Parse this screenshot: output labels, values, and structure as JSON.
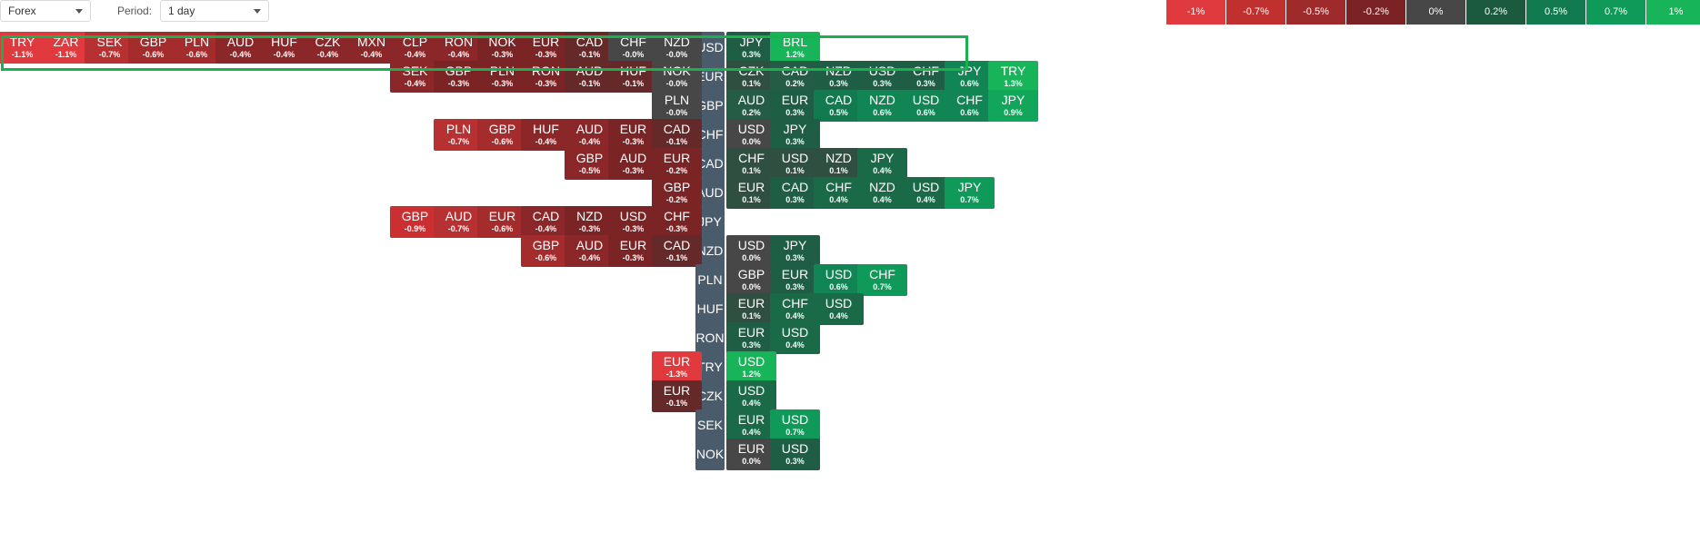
{
  "toolbar": {
    "market": "Forex",
    "period_label": "Period:",
    "period_value": "1 day"
  },
  "legend": [
    {
      "label": "-1%",
      "color": "#e03a3e"
    },
    {
      "label": "-0.7%",
      "color": "#c0302e"
    },
    {
      "label": "-0.5%",
      "color": "#9e2a2b"
    },
    {
      "label": "-0.2%",
      "color": "#7a2224"
    },
    {
      "label": "0%",
      "color": "#474747"
    },
    {
      "label": "0.2%",
      "color": "#1b5a3f"
    },
    {
      "label": "0.5%",
      "color": "#127a4f"
    },
    {
      "label": "0.7%",
      "color": "#0f9a5a"
    },
    {
      "label": "1%",
      "color": "#17b45a"
    }
  ],
  "rows": [
    {
      "base": "USD",
      "left": [
        [
          "TRY",
          "-1.1%"
        ],
        [
          "ZAR",
          "-1.1%"
        ],
        [
          "SEK",
          "-0.7%"
        ],
        [
          "GBP",
          "-0.6%"
        ],
        [
          "PLN",
          "-0.6%"
        ],
        [
          "AUD",
          "-0.4%"
        ],
        [
          "HUF",
          "-0.4%"
        ],
        [
          "CZK",
          "-0.4%"
        ],
        [
          "MXN",
          "-0.4%"
        ],
        [
          "CLP",
          "-0.4%"
        ],
        [
          "RON",
          "-0.4%"
        ],
        [
          "NOK",
          "-0.3%"
        ],
        [
          "EUR",
          "-0.3%"
        ],
        [
          "CAD",
          "-0.1%"
        ],
        [
          "CHF",
          "-0.0%"
        ],
        [
          "NZD",
          "-0.0%"
        ]
      ],
      "right": [
        [
          "JPY",
          "0.3%"
        ],
        [
          "BRL",
          "1.2%"
        ]
      ]
    },
    {
      "base": "EUR",
      "left": [
        [
          "SEK",
          "-0.4%"
        ],
        [
          "GBP",
          "-0.3%"
        ],
        [
          "PLN",
          "-0.3%"
        ],
        [
          "RON",
          "-0.3%"
        ],
        [
          "AUD",
          "-0.1%"
        ],
        [
          "HUF",
          "-0.1%"
        ],
        [
          "NOK",
          "-0.0%"
        ]
      ],
      "right": [
        [
          "CZK",
          "0.1%"
        ],
        [
          "CAD",
          "0.2%"
        ],
        [
          "NZD",
          "0.3%"
        ],
        [
          "USD",
          "0.3%"
        ],
        [
          "CHF",
          "0.3%"
        ],
        [
          "JPY",
          "0.6%"
        ],
        [
          "TRY",
          "1.3%"
        ]
      ]
    },
    {
      "base": "GBP",
      "left": [
        [
          "PLN",
          "-0.0%"
        ]
      ],
      "right": [
        [
          "AUD",
          "0.2%"
        ],
        [
          "EUR",
          "0.3%"
        ],
        [
          "CAD",
          "0.5%"
        ],
        [
          "NZD",
          "0.6%"
        ],
        [
          "USD",
          "0.6%"
        ],
        [
          "CHF",
          "0.6%"
        ],
        [
          "JPY",
          "0.9%"
        ]
      ]
    },
    {
      "base": "CHF",
      "left": [
        [
          "PLN",
          "-0.7%"
        ],
        [
          "GBP",
          "-0.6%"
        ],
        [
          "HUF",
          "-0.4%"
        ],
        [
          "AUD",
          "-0.4%"
        ],
        [
          "EUR",
          "-0.3%"
        ],
        [
          "CAD",
          "-0.1%"
        ]
      ],
      "right": [
        [
          "USD",
          "0.0%"
        ],
        [
          "JPY",
          "0.3%"
        ]
      ]
    },
    {
      "base": "CAD",
      "left": [
        [
          "GBP",
          "-0.5%"
        ],
        [
          "AUD",
          "-0.3%"
        ],
        [
          "EUR",
          "-0.2%"
        ]
      ],
      "right": [
        [
          "CHF",
          "0.1%"
        ],
        [
          "USD",
          "0.1%"
        ],
        [
          "NZD",
          "0.1%"
        ],
        [
          "JPY",
          "0.4%"
        ]
      ]
    },
    {
      "base": "AUD",
      "left": [
        [
          "GBP",
          "-0.2%"
        ]
      ],
      "right": [
        [
          "EUR",
          "0.1%"
        ],
        [
          "CAD",
          "0.3%"
        ],
        [
          "CHF",
          "0.4%"
        ],
        [
          "NZD",
          "0.4%"
        ],
        [
          "USD",
          "0.4%"
        ],
        [
          "JPY",
          "0.7%"
        ]
      ]
    },
    {
      "base": "JPY",
      "left": [
        [
          "GBP",
          "-0.9%"
        ],
        [
          "AUD",
          "-0.7%"
        ],
        [
          "EUR",
          "-0.6%"
        ],
        [
          "CAD",
          "-0.4%"
        ],
        [
          "NZD",
          "-0.3%"
        ],
        [
          "USD",
          "-0.3%"
        ],
        [
          "CHF",
          "-0.3%"
        ]
      ],
      "right": []
    },
    {
      "base": "NZD",
      "left": [
        [
          "GBP",
          "-0.6%"
        ],
        [
          "AUD",
          "-0.4%"
        ],
        [
          "EUR",
          "-0.3%"
        ],
        [
          "CAD",
          "-0.1%"
        ]
      ],
      "right": [
        [
          "USD",
          "0.0%"
        ],
        [
          "JPY",
          "0.3%"
        ]
      ]
    },
    {
      "base": "PLN",
      "left": [],
      "right": [
        [
          "GBP",
          "0.0%"
        ],
        [
          "EUR",
          "0.3%"
        ],
        [
          "USD",
          "0.6%"
        ],
        [
          "CHF",
          "0.7%"
        ]
      ]
    },
    {
      "base": "HUF",
      "left": [],
      "right": [
        [
          "EUR",
          "0.1%"
        ],
        [
          "CHF",
          "0.4%"
        ],
        [
          "USD",
          "0.4%"
        ]
      ]
    },
    {
      "base": "RON",
      "left": [],
      "right": [
        [
          "EUR",
          "0.3%"
        ],
        [
          "USD",
          "0.4%"
        ]
      ]
    },
    {
      "base": "TRY",
      "left": [
        [
          "EUR",
          "-1.3%"
        ]
      ],
      "right": [
        [
          "USD",
          "1.2%"
        ]
      ]
    },
    {
      "base": "CZK",
      "left": [
        [
          "EUR",
          "-0.1%"
        ]
      ],
      "right": [
        [
          "USD",
          "0.4%"
        ]
      ]
    },
    {
      "base": "SEK",
      "left": [],
      "right": [
        [
          "EUR",
          "0.4%"
        ],
        [
          "USD",
          "0.7%"
        ]
      ]
    },
    {
      "base": "NOK",
      "left": [],
      "right": [
        [
          "EUR",
          "0.0%"
        ],
        [
          "USD",
          "0.3%"
        ]
      ]
    }
  ]
}
